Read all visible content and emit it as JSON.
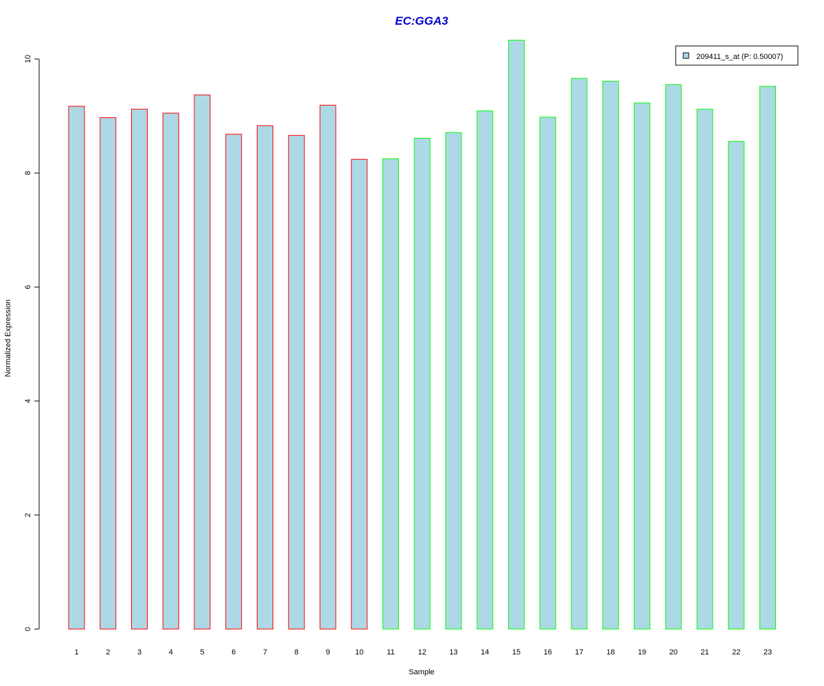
{
  "chart_data": {
    "type": "bar",
    "title": "EC:GGA3",
    "xlabel": "Sample",
    "ylabel": "Normalized Expression",
    "categories": [
      "1",
      "2",
      "3",
      "4",
      "5",
      "6",
      "7",
      "8",
      "9",
      "10",
      "11",
      "12",
      "13",
      "14",
      "15",
      "16",
      "17",
      "18",
      "19",
      "20",
      "21",
      "22",
      "23"
    ],
    "series": [
      {
        "name": "209411_s_at (P: 0.50007)",
        "values": [
          9.17,
          8.97,
          9.12,
          9.05,
          9.37,
          8.68,
          8.83,
          8.66,
          9.19,
          8.24,
          8.25,
          8.61,
          8.71,
          9.09,
          10.33,
          8.98,
          9.66,
          9.61,
          9.23,
          9.55,
          9.12,
          8.55,
          9.52
        ],
        "fill_color": "#add8e6"
      }
    ],
    "bar_border_colors": [
      "#ff0000",
      "#ff0000",
      "#ff0000",
      "#ff0000",
      "#ff0000",
      "#ff0000",
      "#ff0000",
      "#ff0000",
      "#ff0000",
      "#ff0000",
      "#00ff00",
      "#00ff00",
      "#00ff00",
      "#00ff00",
      "#00ff00",
      "#00ff00",
      "#00ff00",
      "#00ff00",
      "#00ff00",
      "#00ff00",
      "#00ff00",
      "#00ff00",
      "#00ff00"
    ],
    "ylim": [
      0,
      10.33
    ],
    "yticks": [
      "0",
      "2",
      "4",
      "6",
      "8",
      "10"
    ],
    "legend": {
      "label": "209411_s_at (P: 0.50007)",
      "position": "top-right"
    },
    "grid": false,
    "title_color": "#0000cc"
  }
}
